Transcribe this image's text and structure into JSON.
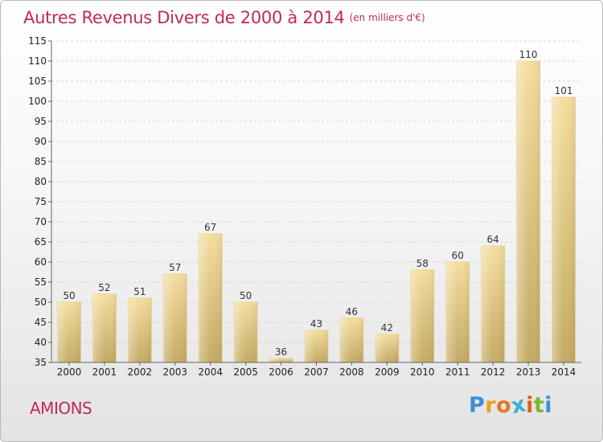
{
  "page": {
    "title": "Autres Revenus Divers de 2000 à 2014",
    "unit": "(en milliers d'€)",
    "commune": "AMIONS",
    "logo": {
      "letters": [
        "P",
        "r",
        "o",
        "x",
        "i",
        "t",
        "i"
      ],
      "colors": [
        "#3a8fd8",
        "#e8a020",
        "#e87820",
        "#3ab0d8",
        "#e85a20",
        "#78b82a",
        "#3a8fd8"
      ]
    }
  },
  "colors": {
    "accent": "#c1285d",
    "bar_light": "#f4dc9c",
    "bar_dark": "#c8ae68"
  },
  "chart_data": {
    "type": "bar",
    "title": "Autres Revenus Divers de 2000 à 2014",
    "xlabel": "",
    "ylabel": "",
    "categories": [
      "2000",
      "2001",
      "2002",
      "2003",
      "2004",
      "2005",
      "2006",
      "2007",
      "2008",
      "2009",
      "2010",
      "2011",
      "2012",
      "2013",
      "2014"
    ],
    "values": [
      50,
      52,
      51,
      57,
      67,
      50,
      36,
      43,
      46,
      42,
      58,
      60,
      64,
      110,
      101
    ],
    "data_labels": [
      "50",
      "52",
      "51",
      "57",
      "67",
      "50",
      "36",
      "43",
      "46",
      "42",
      "58",
      "60",
      "64",
      "110",
      "101"
    ],
    "ylim": [
      35,
      115
    ],
    "yticks": [
      35,
      40,
      45,
      50,
      55,
      60,
      65,
      70,
      75,
      80,
      85,
      90,
      95,
      100,
      105,
      110,
      115
    ],
    "grid": true,
    "legend": "none"
  }
}
